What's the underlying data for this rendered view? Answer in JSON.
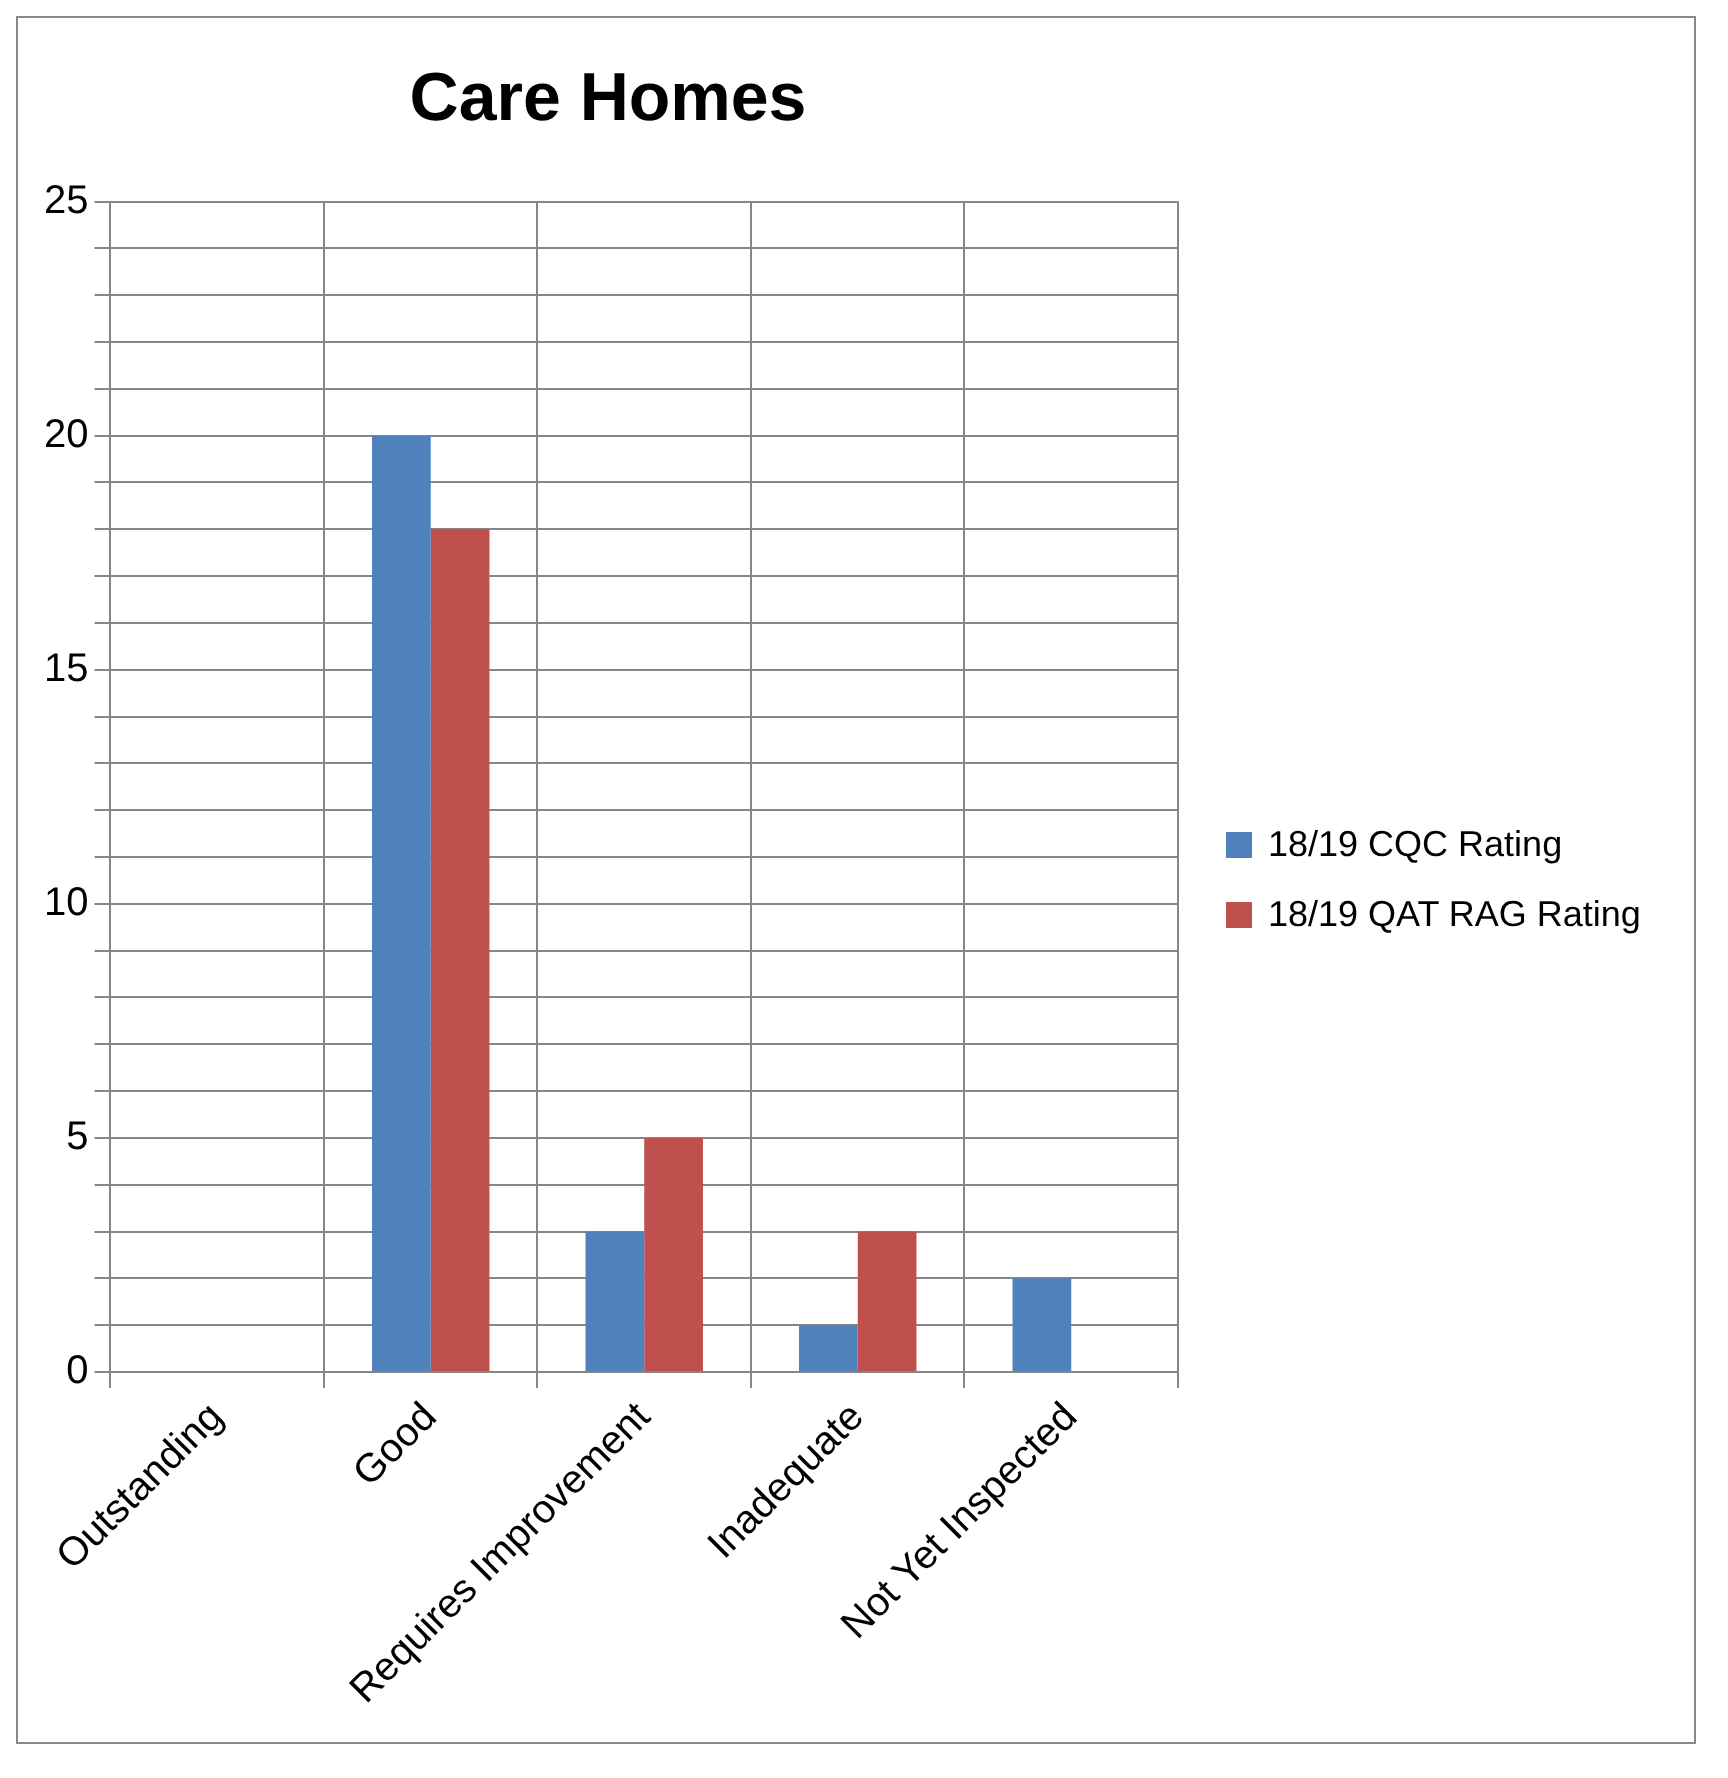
{
  "chart_data": {
    "type": "bar",
    "title": "Care Homes",
    "categories": [
      "Outstanding",
      "Good",
      "Requires Improvement",
      "Inadequate",
      "Not Yet Inspected"
    ],
    "series": [
      {
        "name": "18/19 CQC Rating",
        "color": "#4f81bd",
        "values": [
          0,
          20,
          3,
          1,
          2
        ]
      },
      {
        "name": "18/19 QAT RAG Rating",
        "color": "#c0504d",
        "values": [
          0,
          18,
          5,
          3,
          0
        ]
      }
    ],
    "ylim": [
      0,
      25
    ],
    "yticks": [
      0,
      {
        "value": 1,
        "label": null
      },
      {
        "value": 2,
        "label": null
      },
      {
        "value": 3,
        "label": null
      },
      {
        "value": 4,
        "label": null
      },
      5,
      {
        "value": 6,
        "label": null
      },
      {
        "value": 7,
        "label": null
      },
      {
        "value": 8,
        "label": null
      },
      {
        "value": 9,
        "label": null
      },
      10,
      {
        "value": 11,
        "label": null
      },
      {
        "value": 12,
        "label": null
      },
      {
        "value": 13,
        "label": null
      },
      {
        "value": 14,
        "label": null
      },
      15,
      {
        "value": 16,
        "label": null
      },
      {
        "value": 17,
        "label": null
      },
      {
        "value": 18,
        "label": null
      },
      {
        "value": 19,
        "label": null
      },
      20,
      {
        "value": 21,
        "label": null
      },
      {
        "value": 22,
        "label": null
      },
      {
        "value": 23,
        "label": null
      },
      {
        "value": 24,
        "label": null
      },
      25
    ],
    "grid": true,
    "legend": "right"
  }
}
